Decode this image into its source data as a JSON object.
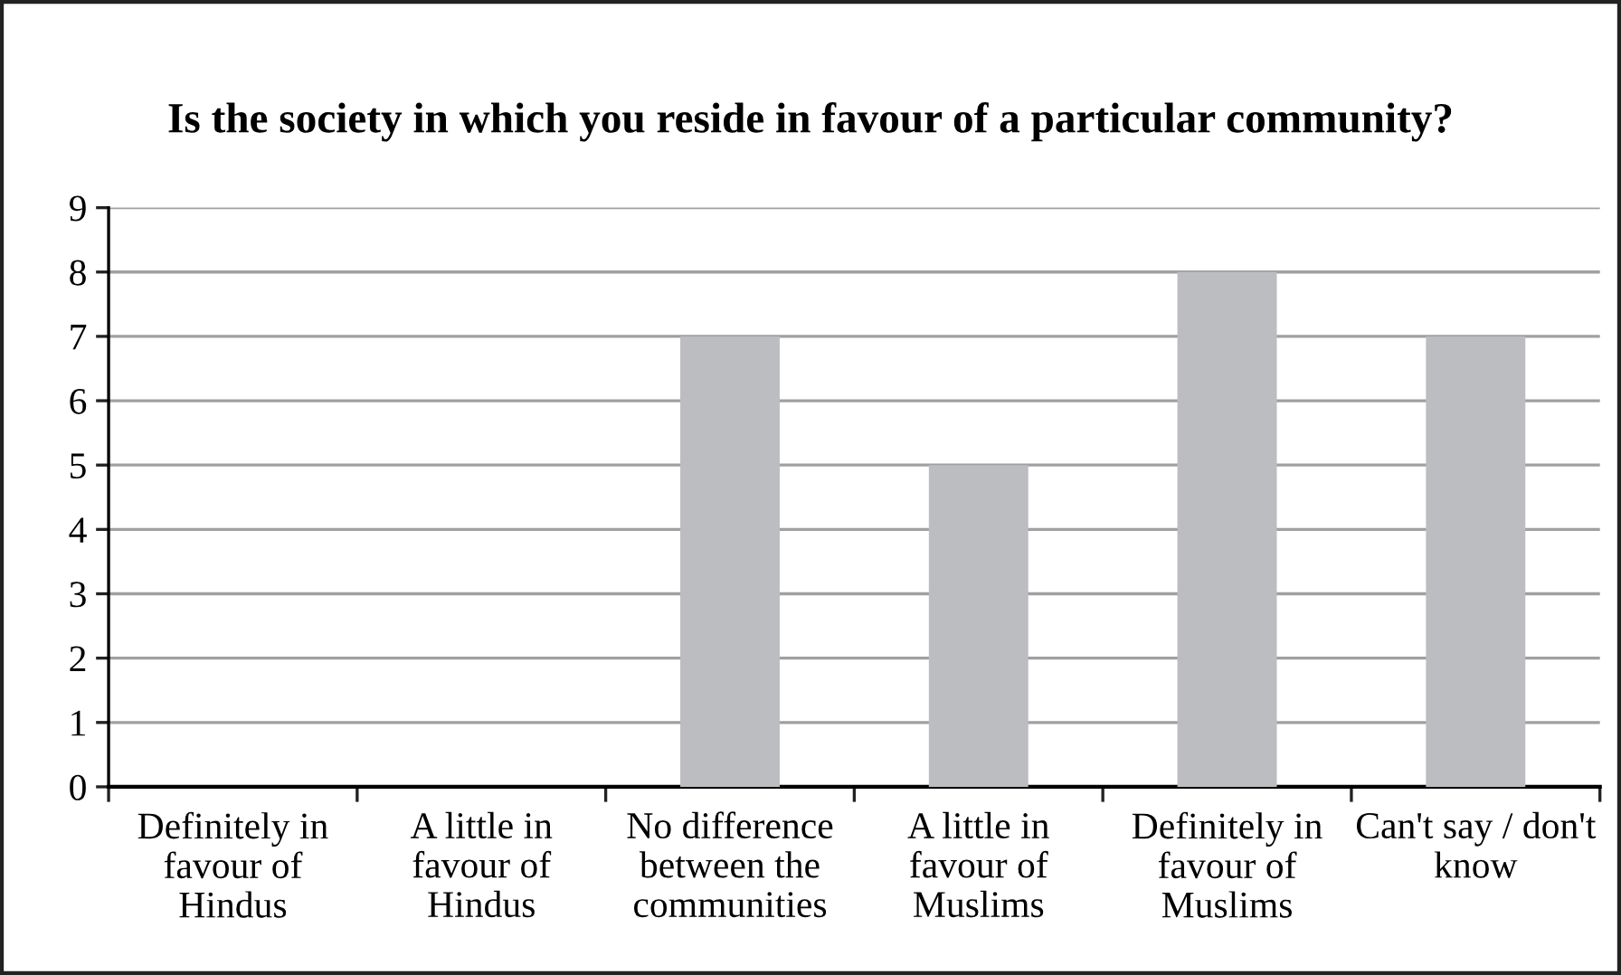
{
  "chart_data": {
    "type": "bar",
    "title": "Is the society in which you reside in favour of a particular community?",
    "categories": [
      "Definitely in\nfavour of\nHindus",
      "A little in\nfavour of\nHindus",
      "No difference\nbetween the\ncommunities",
      "A little in\nfavour of\nMuslims",
      "Definitely in\nfavour of\nMuslims",
      "Can't say / don't\nknow"
    ],
    "values": [
      0,
      0,
      7,
      5,
      8,
      7
    ],
    "color": "#bcbdc0",
    "ylim": [
      0,
      9
    ],
    "yticks": [
      0,
      1,
      2,
      3,
      4,
      5,
      6,
      7,
      8,
      9
    ],
    "grid": "y",
    "legend": false
  }
}
